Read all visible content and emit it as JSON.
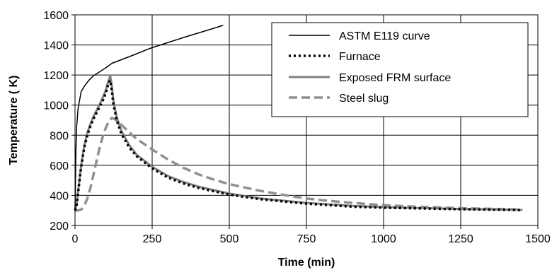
{
  "chart_data": {
    "type": "line",
    "title": "",
    "xlabel": "Time (min)",
    "ylabel": "Temperature ( K)",
    "xlim": [
      0,
      1500
    ],
    "ylim": [
      200,
      1600
    ],
    "x_ticks": [
      0,
      250,
      500,
      750,
      1000,
      1250,
      1500
    ],
    "y_ticks": [
      200,
      400,
      600,
      800,
      1000,
      1200,
      1400,
      1600
    ],
    "x_tick_labels": [
      "0",
      "250",
      "500",
      "750",
      "1000",
      "1250",
      "1500"
    ],
    "y_tick_labels": [
      "200",
      "400",
      "600",
      "800",
      "1000",
      "1200",
      "1400",
      "1600"
    ],
    "grid": true,
    "legend_position": "top-right",
    "series": [
      {
        "name": "ASTM E119 curve",
        "style": "solid",
        "color": "#000000",
        "x": [
          0,
          3,
          5,
          10,
          20,
          30,
          45,
          60,
          80,
          100,
          120,
          180,
          240,
          300,
          360,
          420,
          480
        ],
        "y": [
          300,
          700,
          850,
          980,
          1090,
          1125,
          1165,
          1195,
          1222,
          1248,
          1278,
          1325,
          1375,
          1415,
          1455,
          1492,
          1530
        ]
      },
      {
        "name": "Furnace",
        "style": "dotted",
        "color": "#000000",
        "x": [
          0,
          5,
          10,
          20,
          30,
          40,
          50,
          60,
          70,
          80,
          90,
          100,
          105,
          110,
          113,
          117,
          125,
          135,
          150,
          175,
          200,
          250,
          300,
          350,
          400,
          500,
          600,
          750,
          900,
          1000,
          1100,
          1250,
          1400,
          1450
        ],
        "y": [
          300,
          330,
          420,
          590,
          720,
          800,
          860,
          910,
          950,
          990,
          1030,
          1080,
          1120,
          1150,
          1165,
          1130,
          1000,
          900,
          810,
          720,
          660,
          580,
          520,
          480,
          450,
          405,
          375,
          345,
          325,
          318,
          314,
          308,
          304,
          302
        ]
      },
      {
        "name": "Exposed FRM surface",
        "style": "solid-thick",
        "color": "#808080",
        "x": [
          0,
          5,
          10,
          20,
          30,
          40,
          50,
          60,
          70,
          80,
          90,
          100,
          105,
          110,
          114,
          118,
          125,
          135,
          150,
          175,
          200,
          250,
          300,
          350,
          400,
          500,
          600,
          750,
          900,
          1000,
          1100,
          1250,
          1400,
          1450
        ],
        "y": [
          300,
          340,
          430,
          600,
          730,
          815,
          875,
          925,
          965,
          1005,
          1050,
          1100,
          1140,
          1170,
          1195,
          1150,
          1020,
          920,
          830,
          735,
          670,
          590,
          530,
          490,
          458,
          412,
          380,
          350,
          330,
          322,
          317,
          310,
          305,
          303
        ]
      },
      {
        "name": "Steel slug",
        "style": "dashed",
        "color": "#909090",
        "x": [
          0,
          10,
          20,
          30,
          40,
          50,
          60,
          70,
          80,
          90,
          100,
          110,
          120,
          130,
          150,
          175,
          200,
          250,
          300,
          350,
          400,
          450,
          500,
          600,
          700,
          750,
          800,
          900,
          1000,
          1100,
          1250,
          1400,
          1450
        ],
        "y": [
          300,
          300,
          305,
          330,
          380,
          450,
          540,
          630,
          720,
          790,
          850,
          895,
          915,
          905,
          870,
          820,
          775,
          705,
          640,
          585,
          540,
          505,
          475,
          430,
          395,
          380,
          368,
          350,
          335,
          325,
          315,
          308,
          305
        ]
      }
    ]
  }
}
